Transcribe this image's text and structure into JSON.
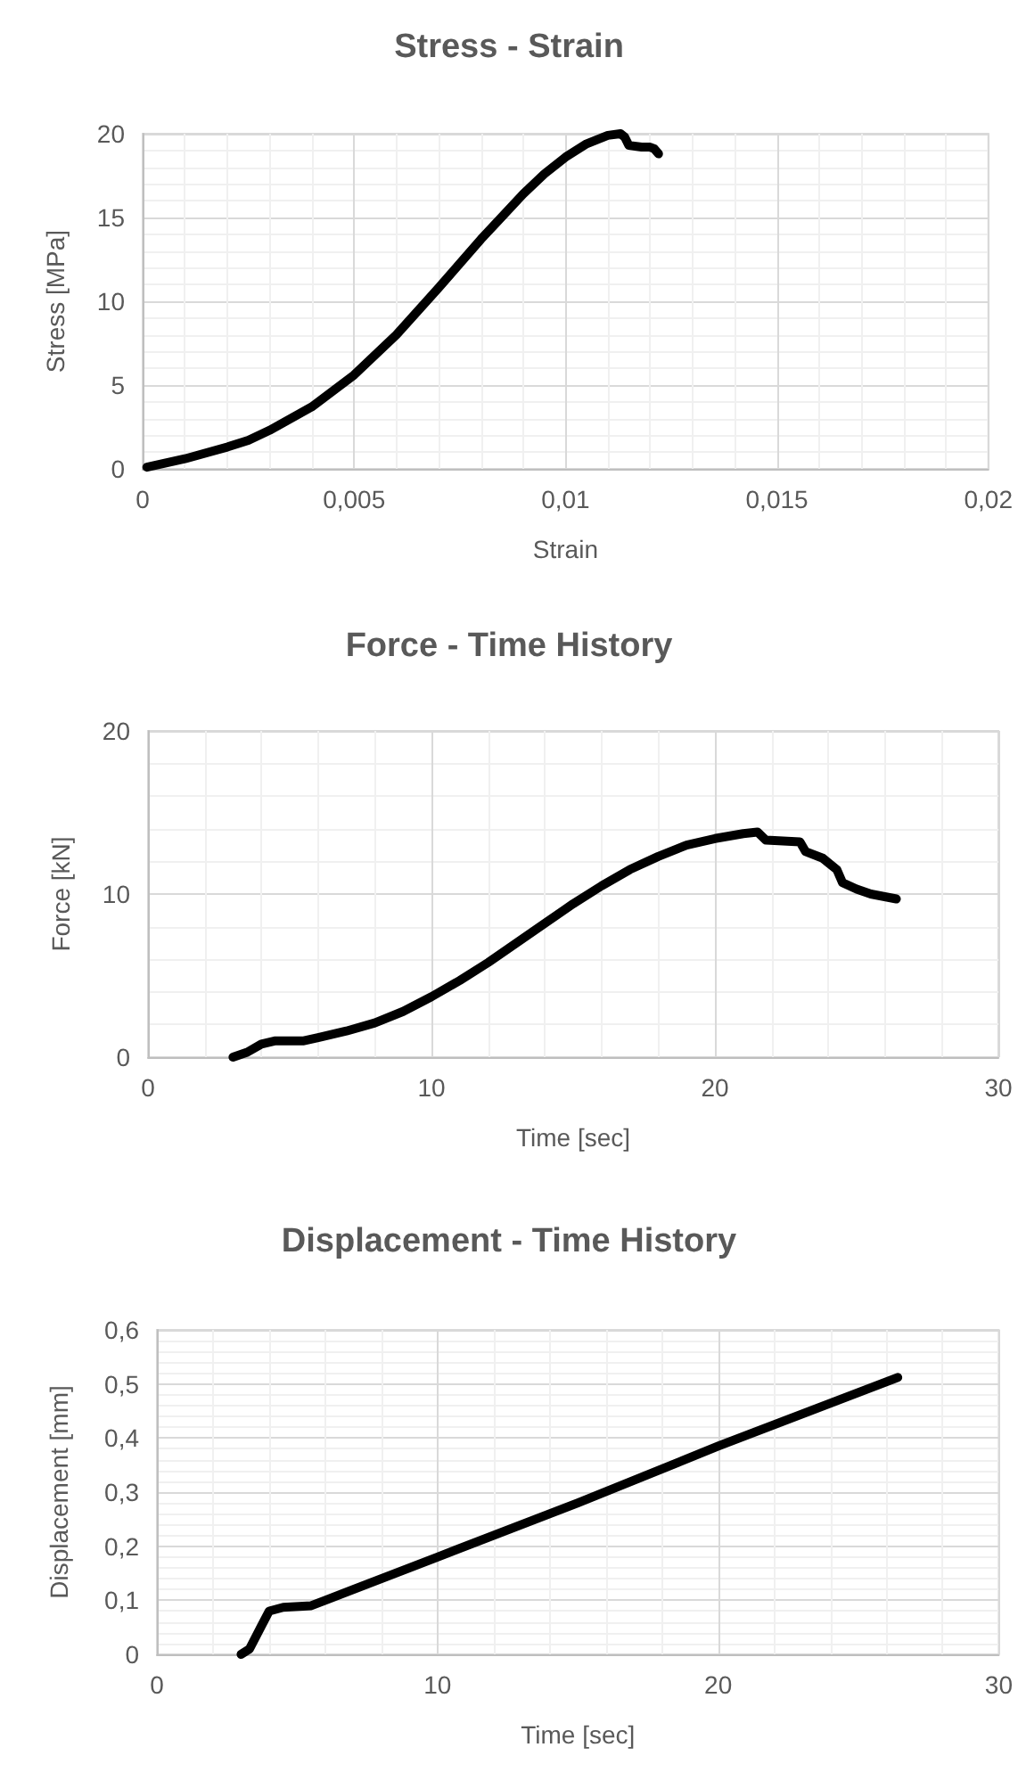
{
  "chart_data": [
    {
      "type": "line",
      "title": "Stress - Strain",
      "xlabel": "Strain",
      "ylabel": "Stress [MPa]",
      "color": "#000000",
      "marker": "none",
      "grid": true,
      "x": [
        0.0001,
        0.001,
        0.002,
        0.0025,
        0.003,
        0.004,
        0.005,
        0.006,
        0.007,
        0.008,
        0.009,
        0.0095,
        0.01,
        0.0105,
        0.011,
        0.0113,
        0.0114,
        0.0115,
        0.0118,
        0.012,
        0.0121,
        0.0122
      ],
      "values": [
        0.1,
        0.6,
        1.3,
        1.7,
        2.3,
        3.7,
        5.6,
        8.0,
        10.8,
        13.7,
        16.4,
        17.6,
        18.6,
        19.4,
        19.9,
        20.0,
        19.8,
        19.3,
        19.2,
        19.2,
        19.1,
        18.8
      ],
      "xlim": [
        0,
        0.02
      ],
      "xticks": [
        0,
        {
          "value": 0.005,
          "label": "0,005"
        },
        {
          "value": 0.01,
          "label": "0,01"
        },
        {
          "value": 0.015,
          "label": "0,015"
        },
        {
          "value": 0.02,
          "label": "0,02"
        }
      ],
      "ylim": [
        0,
        20
      ],
      "yticks": [
        0,
        5,
        10,
        15,
        20
      ]
    },
    {
      "type": "line",
      "title": "Force - Time History",
      "xlabel": "Time [sec]",
      "ylabel": "Force [kN]",
      "color": "#000000",
      "marker": "none",
      "grid": true,
      "x": [
        3,
        3.5,
        4,
        4.5,
        5.5,
        6,
        7,
        8,
        9,
        10,
        11,
        12,
        13,
        14,
        15,
        16,
        17,
        18,
        19,
        20,
        21,
        21.5,
        21.8,
        23,
        23.2,
        23.8,
        24.3,
        24.5,
        25,
        25.5,
        26.4
      ],
      "values": [
        0,
        0.3,
        0.8,
        1.0,
        1.0,
        1.2,
        1.6,
        2.1,
        2.8,
        3.7,
        4.7,
        5.8,
        7.0,
        8.2,
        9.4,
        10.5,
        11.5,
        12.3,
        13.0,
        13.4,
        13.7,
        13.8,
        13.3,
        13.2,
        12.6,
        12.2,
        11.5,
        10.7,
        10.3,
        10.0,
        9.7
      ],
      "xlim": [
        0,
        30
      ],
      "xticks": [
        0,
        10,
        20,
        30
      ],
      "ylim": [
        0,
        20
      ],
      "yticks": [
        0,
        10,
        20
      ]
    },
    {
      "type": "line",
      "title": "Displacement - Time History",
      "xlabel": "Time [sec]",
      "ylabel": "Displacement [mm]",
      "color": "#000000",
      "marker": "none",
      "grid": true,
      "x": [
        3.0,
        3.3,
        3.7,
        4.0,
        4.5,
        5.5,
        6,
        10,
        15,
        20,
        26.4
      ],
      "values": [
        0,
        0.01,
        0.05,
        0.08,
        0.087,
        0.09,
        0.1,
        0.18,
        0.28,
        0.385,
        0.512
      ],
      "xlim": [
        0,
        30
      ],
      "xticks": [
        0,
        10,
        20,
        30
      ],
      "ylim": [
        0,
        0.6
      ],
      "yticks": [
        0,
        {
          "value": 0.1,
          "label": "0,1"
        },
        {
          "value": 0.2,
          "label": "0,2"
        },
        {
          "value": 0.3,
          "label": "0,3"
        },
        {
          "value": 0.4,
          "label": "0,4"
        },
        {
          "value": 0.5,
          "label": "0,5"
        },
        {
          "value": 0.6,
          "label": "0,6"
        }
      ]
    }
  ]
}
